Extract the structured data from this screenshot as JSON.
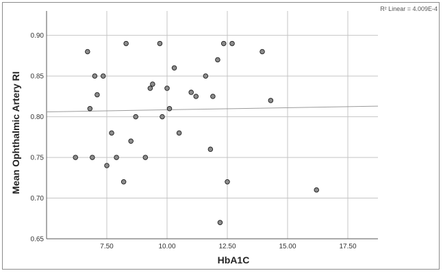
{
  "chart_data": {
    "type": "scatter",
    "xlabel": "HbA1C",
    "ylabel": "Mean Ophthalmic Artery RI",
    "annotation": "R² Linear = 4.009E-4",
    "xlim": [
      5.0,
      18.75
    ],
    "ylim": [
      0.65,
      0.93
    ],
    "x_ticks": [
      7.5,
      10.0,
      12.5,
      15.0,
      17.5
    ],
    "x_tick_labels": [
      "7.50",
      "10.00",
      "12.50",
      "15.00",
      "17.50"
    ],
    "y_ticks": [
      0.65,
      0.7,
      0.75,
      0.8,
      0.85,
      0.9
    ],
    "y_tick_labels": [
      "0.65",
      "0.70",
      "0.75",
      "0.80",
      "0.85",
      "0.90"
    ],
    "grid": true,
    "point_color": "#8c8c8c",
    "fit_line_color": "#9a9a9a",
    "fit_line": {
      "x": [
        5.0,
        18.75
      ],
      "y": [
        0.806,
        0.813
      ]
    },
    "points": [
      {
        "x": 6.2,
        "y": 0.75
      },
      {
        "x": 6.7,
        "y": 0.88
      },
      {
        "x": 6.8,
        "y": 0.81
      },
      {
        "x": 6.9,
        "y": 0.75
      },
      {
        "x": 7.0,
        "y": 0.85
      },
      {
        "x": 7.1,
        "y": 0.827
      },
      {
        "x": 7.35,
        "y": 0.85
      },
      {
        "x": 7.5,
        "y": 0.74
      },
      {
        "x": 7.7,
        "y": 0.78
      },
      {
        "x": 7.9,
        "y": 0.75
      },
      {
        "x": 8.2,
        "y": 0.72
      },
      {
        "x": 8.3,
        "y": 0.89
      },
      {
        "x": 8.5,
        "y": 0.77
      },
      {
        "x": 8.7,
        "y": 0.8
      },
      {
        "x": 9.1,
        "y": 0.75
      },
      {
        "x": 9.3,
        "y": 0.835
      },
      {
        "x": 9.4,
        "y": 0.84
      },
      {
        "x": 9.7,
        "y": 0.89
      },
      {
        "x": 9.8,
        "y": 0.8
      },
      {
        "x": 10.0,
        "y": 0.835
      },
      {
        "x": 10.1,
        "y": 0.81
      },
      {
        "x": 10.3,
        "y": 0.86
      },
      {
        "x": 10.5,
        "y": 0.78
      },
      {
        "x": 11.0,
        "y": 0.83
      },
      {
        "x": 11.2,
        "y": 0.825
      },
      {
        "x": 11.6,
        "y": 0.85
      },
      {
        "x": 11.8,
        "y": 0.76
      },
      {
        "x": 11.9,
        "y": 0.825
      },
      {
        "x": 12.1,
        "y": 0.87
      },
      {
        "x": 12.2,
        "y": 0.67
      },
      {
        "x": 12.35,
        "y": 0.89
      },
      {
        "x": 12.5,
        "y": 0.72
      },
      {
        "x": 12.7,
        "y": 0.89
      },
      {
        "x": 13.95,
        "y": 0.88
      },
      {
        "x": 14.3,
        "y": 0.82
      },
      {
        "x": 16.2,
        "y": 0.71
      }
    ]
  }
}
